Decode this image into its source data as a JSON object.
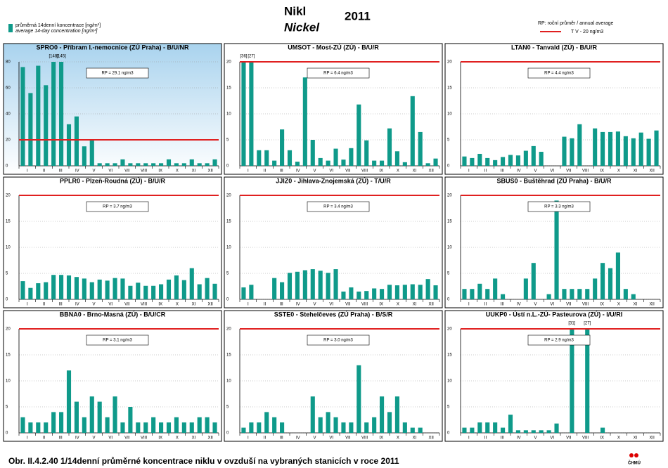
{
  "header": {
    "legend_cz": "průměrná 14denní koncentrace [ng/m³]",
    "legend_en": "average 14-day concentration [ng/m³]",
    "title_cz": "Nikl",
    "title_en": "Nickel",
    "year": "2011",
    "rp_legend": "RP: roční průměr / annual average",
    "tv_legend": "T V  - 20 ng/m3",
    "bar_color": "#0f9a8a",
    "tv_color": "#e02020"
  },
  "months": [
    "I",
    "II",
    "III",
    "IV",
    "V",
    "VI",
    "VII",
    "VIII",
    "IX",
    "X",
    "XI",
    "XII"
  ],
  "tv": 20,
  "chart_data": [
    {
      "type": "bar",
      "title": "SPRO0 - Příbram I.-nemocnice (ZÚ Praha) - B/U/NR",
      "rp": "RP = 29.1 ng/m3",
      "ylim": [
        0,
        80
      ],
      "yticks": [
        0,
        20,
        40,
        60,
        80
      ],
      "values": [
        76,
        56,
        77,
        62,
        148,
        145,
        32,
        38,
        15,
        20,
        2,
        2,
        2,
        5,
        2,
        2,
        2,
        2,
        2,
        5,
        2,
        2,
        5,
        2,
        2,
        5
      ],
      "value_labels": [
        null,
        null,
        null,
        null,
        "[148]",
        "[145]",
        null,
        null,
        null,
        null,
        null,
        null,
        null,
        null,
        null,
        null,
        null,
        null,
        null,
        null,
        null,
        null,
        null,
        null,
        null,
        null
      ],
      "background": "gradient"
    },
    {
      "type": "bar",
      "title": "UMSOT - Most-ZÚ (ZÚ) - B/U/R",
      "rp": "RP = 6.4 ng/m3",
      "ylim": [
        0,
        20
      ],
      "yticks": [
        0,
        5,
        10,
        15,
        20
      ],
      "values": [
        36,
        27,
        3,
        3,
        1,
        7,
        3,
        0.8,
        17,
        5,
        1.5,
        1,
        3.3,
        1.2,
        3.4,
        11.8,
        4.9,
        1,
        1,
        7.2,
        2.8,
        0.7,
        13.4,
        6.5,
        0.5,
        1.4
      ],
      "value_labels": [
        "[36]",
        "[27]",
        null,
        null,
        null,
        null,
        null,
        null,
        null,
        null,
        null,
        null,
        null,
        null,
        null,
        null,
        null,
        null,
        null,
        null,
        null,
        null,
        null,
        null,
        null,
        null
      ]
    },
    {
      "type": "bar",
      "title": "LTAN0 - Tanvald (ZÚ) - B/U/R",
      "rp": "RP = 4.4 ng/m3",
      "ylim": [
        0,
        20
      ],
      "yticks": [
        0,
        5,
        10,
        15,
        20
      ],
      "values": [
        1.8,
        1.5,
        2.3,
        1.5,
        1.1,
        1.7,
        2.1,
        2,
        2.9,
        3.8,
        2.7,
        null,
        null,
        5.6,
        5.3,
        8,
        null,
        7.2,
        6.5,
        6.5,
        6.6,
        5.7,
        5.3,
        6.4,
        5.2,
        6.8
      ]
    },
    {
      "type": "bar",
      "title": "PPLR0 - Plzeň-Roudná (ZÚ) - B/U/R",
      "rp": "RP = 3.7 ng/m3",
      "ylim": [
        0,
        20
      ],
      "yticks": [
        0,
        5,
        10,
        15,
        20
      ],
      "values": [
        3.5,
        2.2,
        3.1,
        3.3,
        4.7,
        4.7,
        4.6,
        4.3,
        4,
        3.3,
        3.8,
        3.6,
        4.1,
        4,
        2.6,
        3.2,
        2.6,
        2.6,
        2.9,
        3.8,
        4.6,
        3.7,
        6,
        2.9,
        4.1,
        3
      ]
    },
    {
      "type": "bar",
      "title": "JJIZ0 - Jihlava-Znojemská (ZÚ) - T/U/R",
      "rp": "RP = 3.4 ng/m3",
      "ylim": [
        0,
        20
      ],
      "yticks": [
        0,
        5,
        10,
        15,
        20
      ],
      "values": [
        2.3,
        2.8,
        null,
        null,
        4.1,
        3.3,
        5.1,
        5.3,
        5.6,
        5.8,
        5.5,
        5.1,
        5.8,
        1.5,
        2.3,
        1.5,
        1.6,
        2.1,
        2,
        2.8,
        2.7,
        2.8,
        2.9,
        2.8,
        3.9,
        2.7
      ]
    },
    {
      "type": "bar",
      "title": "SBUS0 - Buštěhrad (ZÚ Praha) - B/U/R",
      "rp": "RP = 3.3 ng/m3",
      "ylim": [
        0,
        20
      ],
      "yticks": [
        0,
        5,
        10,
        15,
        20
      ],
      "values": [
        2,
        2,
        3,
        2,
        4,
        1,
        null,
        null,
        4,
        7,
        null,
        1,
        19,
        2,
        2,
        2,
        2,
        4,
        7,
        6,
        9,
        2,
        1,
        null,
        null,
        null
      ]
    },
    {
      "type": "bar",
      "title": "BBNA0 - Brno-Masná (ZÚ) - B/U/CR",
      "rp": "RP = 3.1 ng/m3",
      "ylim": [
        0,
        20
      ],
      "yticks": [
        0,
        5,
        10,
        15,
        20
      ],
      "values": [
        3,
        2,
        2,
        2,
        4,
        4,
        12,
        6,
        3,
        7,
        6,
        3,
        7,
        2,
        5,
        2,
        2,
        3,
        2,
        2,
        3,
        2,
        2,
        3,
        3,
        2
      ]
    },
    {
      "type": "bar",
      "title": "SSTE0 - Stehelčeves (ZÚ Praha) - B/S/R",
      "rp": "RP = 3.0 ng/m3",
      "ylim": [
        0,
        20
      ],
      "yticks": [
        0,
        5,
        10,
        15,
        20
      ],
      "values": [
        1,
        2,
        2,
        4,
        3,
        2,
        null,
        null,
        null,
        7,
        3,
        4,
        3,
        2,
        2,
        13,
        2,
        3,
        7,
        4,
        7,
        2,
        1,
        1,
        null,
        null
      ]
    },
    {
      "type": "bar",
      "title": "UUKP0 - Ústí n.L.-ZÚ- Pasteurova (ZÚ) - I/U/RI",
      "rp": "RP = 2.9 ng/m3",
      "ylim": [
        0,
        20
      ],
      "yticks": [
        0,
        5,
        10,
        15,
        20
      ],
      "values": [
        1,
        1,
        2,
        2,
        2,
        1,
        3.5,
        0.5,
        0.5,
        0.5,
        0.5,
        0.5,
        1.8,
        null,
        31,
        null,
        27,
        null,
        1,
        null,
        null,
        null,
        null,
        null,
        null,
        null
      ],
      "value_labels": [
        null,
        null,
        null,
        null,
        null,
        null,
        null,
        null,
        null,
        null,
        null,
        null,
        null,
        null,
        "[31]",
        null,
        "[27]",
        null,
        null,
        null,
        null,
        null,
        null,
        null,
        null,
        null
      ]
    }
  ],
  "footer": {
    "caption": "Obr. II.4.2.40  1/14denní průměrné koncentrace niklu v ovzduší na vybraných stanicích v roce 2011",
    "logo": "ČHMÚ"
  }
}
